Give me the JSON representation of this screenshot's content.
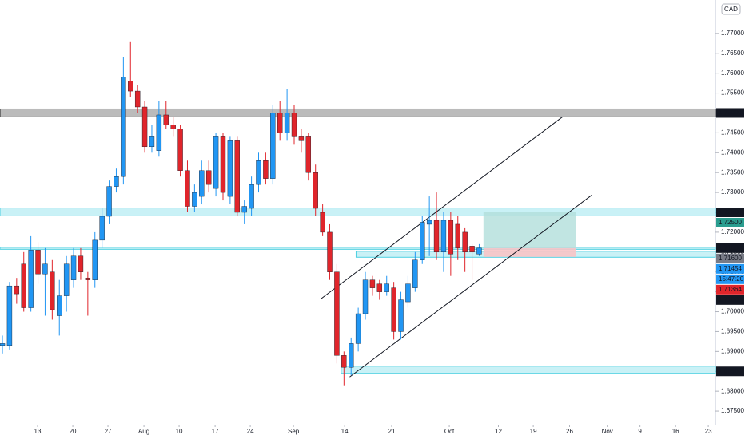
{
  "chart_data": {
    "type": "candlestick",
    "currency": "CAD",
    "xlim": [
      -0.34,
      100.2
    ],
    "ylim": [
      1.6716,
      1.7784
    ],
    "xticks": [
      {
        "value": 4.94,
        "label": "13"
      },
      {
        "value": 9.89,
        "label": "20"
      },
      {
        "value": 14.83,
        "label": "27"
      },
      {
        "value": 19.89,
        "label": "Aug"
      },
      {
        "value": 24.83,
        "label": "10"
      },
      {
        "value": 29.89,
        "label": "17"
      },
      {
        "value": 34.83,
        "label": "24"
      },
      {
        "value": 40.9,
        "label": "Sep"
      },
      {
        "value": 48.09,
        "label": "14"
      },
      {
        "value": 54.7,
        "label": "21"
      },
      {
        "value": 62.8,
        "label": "Oct"
      },
      {
        "value": 69.7,
        "label": "12"
      },
      {
        "value": 74.6,
        "label": "19"
      },
      {
        "value": 79.7,
        "label": "26"
      },
      {
        "value": 85.0,
        "label": "Nov"
      },
      {
        "value": 89.6,
        "label": "9"
      },
      {
        "value": 94.6,
        "label": "16"
      },
      {
        "value": 99.2,
        "label": "23"
      }
    ],
    "yticks": [
      {
        "value": 1.77,
        "label": "1.77000"
      },
      {
        "value": 1.765,
        "label": "1.76500"
      },
      {
        "value": 1.76,
        "label": "1.76000"
      },
      {
        "value": 1.755,
        "label": "1.75500"
      },
      {
        "value": 1.75,
        "label": "1.75000"
      },
      {
        "value": 1.745,
        "label": "1.74500"
      },
      {
        "value": 1.74,
        "label": "1.74000"
      },
      {
        "value": 1.735,
        "label": "1.73500"
      },
      {
        "value": 1.73,
        "label": "1.73000"
      },
      {
        "value": 1.725,
        "label": "1.72500"
      },
      {
        "value": 1.72,
        "label": "1.72000"
      },
      {
        "value": 1.715,
        "label": "1.71500"
      },
      {
        "value": 1.71,
        "label": "1.71000"
      },
      {
        "value": 1.705,
        "label": "1.70500"
      },
      {
        "value": 1.7,
        "label": "1.70000"
      },
      {
        "value": 1.695,
        "label": "1.69500"
      },
      {
        "value": 1.69,
        "label": "1.69000"
      },
      {
        "value": 1.685,
        "label": "1.68500"
      },
      {
        "value": 1.68,
        "label": "1.68000"
      },
      {
        "value": 1.675,
        "label": "1.67500"
      }
    ],
    "up_color": "#2196f3",
    "down_color": "#e0252b",
    "open": [
      1.6915,
      1.6915,
      1.7065,
      1.712,
      1.701,
      1.7155,
      1.7095,
      1.71,
      1.699,
      1.704,
      1.708,
      1.714,
      1.7085,
      1.708,
      1.718,
      1.724,
      1.7315,
      1.734,
      1.758,
      1.7555,
      1.7515,
      1.7415,
      1.7405,
      1.7495,
      1.747,
      1.746,
      1.7355,
      1.7265,
      1.729,
      1.7355,
      1.731,
      1.744,
      1.729,
      1.743,
      1.725,
      1.726,
      1.732,
      1.738,
      1.7335,
      1.75,
      1.745,
      1.75,
      1.744,
      1.744,
      1.735,
      1.725,
      1.72,
      1.71,
      1.689,
      1.686,
      1.692,
      1.6995,
      1.708,
      1.707,
      1.705,
      1.706,
      1.695,
      1.7025,
      1.706,
      1.713,
      1.722,
      1.723,
      1.715,
      1.723,
      1.722,
      1.72,
      1.7165,
      1.7145
    ],
    "high": [
      1.694,
      1.7075,
      1.7085,
      1.715,
      1.719,
      1.7175,
      1.716,
      1.713,
      1.708,
      1.714,
      1.716,
      1.716,
      1.71,
      1.72,
      1.726,
      1.733,
      1.736,
      1.764,
      1.768,
      1.757,
      1.753,
      1.747,
      1.753,
      1.753,
      1.749,
      1.747,
      1.738,
      1.732,
      1.738,
      1.738,
      1.745,
      1.745,
      1.744,
      1.744,
      1.728,
      1.734,
      1.74,
      1.74,
      1.752,
      1.753,
      1.756,
      1.752,
      1.746,
      1.745,
      1.737,
      1.727,
      1.722,
      1.712,
      1.69,
      1.6935,
      1.701,
      1.71,
      1.709,
      1.708,
      1.709,
      1.7075,
      1.705,
      1.709,
      1.715,
      1.724,
      1.729,
      1.73,
      1.725,
      1.725,
      1.724,
      1.721,
      1.717,
      1.717
    ],
    "low": [
      1.6895,
      1.6905,
      1.702,
      1.7,
      1.7,
      1.707,
      1.699,
      1.698,
      1.694,
      1.7,
      1.706,
      1.708,
      1.699,
      1.706,
      1.716,
      1.722,
      1.73,
      1.732,
      1.754,
      1.75,
      1.74,
      1.74,
      1.739,
      1.746,
      1.744,
      1.734,
      1.725,
      1.725,
      1.727,
      1.73,
      1.729,
      1.728,
      1.727,
      1.724,
      1.722,
      1.724,
      1.73,
      1.732,
      1.732,
      1.743,
      1.743,
      1.742,
      1.74,
      1.733,
      1.724,
      1.719,
      1.708,
      1.687,
      1.6815,
      1.684,
      1.69,
      1.698,
      1.704,
      1.703,
      1.704,
      1.693,
      1.693,
      1.701,
      1.705,
      1.712,
      1.714,
      1.713,
      1.71,
      1.709,
      1.713,
      1.71,
      1.708,
      1.714
    ],
    "close": [
      1.692,
      1.7065,
      1.7045,
      1.701,
      1.7155,
      1.7095,
      1.712,
      1.7005,
      1.704,
      1.712,
      1.714,
      1.71,
      1.708,
      1.718,
      1.724,
      1.7315,
      1.734,
      1.759,
      1.7555,
      1.7515,
      1.7415,
      1.744,
      1.7495,
      1.747,
      1.746,
      1.7355,
      1.7265,
      1.73,
      1.7355,
      1.732,
      1.744,
      1.73,
      1.743,
      1.725,
      1.7265,
      1.732,
      1.738,
      1.7335,
      1.75,
      1.745,
      1.75,
      1.744,
      1.743,
      1.735,
      1.726,
      1.72,
      1.71,
      1.689,
      1.686,
      1.692,
      1.6995,
      1.708,
      1.706,
      1.705,
      1.707,
      1.695,
      1.703,
      1.707,
      1.713,
      1.7225,
      1.723,
      1.715,
      1.723,
      1.7145,
      1.716,
      1.715,
      1.715,
      1.716
    ],
    "zones": [
      {
        "from": -0.34,
        "low": 1.749,
        "high": 1.751,
        "color": "#9e9e9e",
        "stroke": "#222222"
      },
      {
        "from": -0.34,
        "low": 1.7241,
        "high": 1.7261,
        "color": "#b2ebf2",
        "stroke": "#4dd0e1"
      },
      {
        "from": -0.34,
        "low": 1.7157,
        "high": 1.7162,
        "color": "#b2ebf2",
        "stroke": "#4dd0e1"
      },
      {
        "from": 49.7,
        "low": 1.7137,
        "high": 1.7152,
        "color": "#b2ebf2",
        "stroke": "#4dd0e1"
      },
      {
        "from": 47.6,
        "low": 1.6845,
        "high": 1.6863,
        "color": "#b2ebf2",
        "stroke": "#4dd0e1"
      }
    ],
    "trendlines": [
      {
        "x": [
          48.8,
          82.8
        ],
        "y": [
          1.6836,
          1.7293
        ]
      },
      {
        "x": [
          44.8,
          78.7
        ],
        "y": [
          1.7033,
          1.749
        ]
      }
    ],
    "position": {
      "x": [
        67.6,
        80.6
      ],
      "target": 1.725,
      "entry": 1.716,
      "stop": 1.7138
    },
    "price_labels": [
      {
        "value": 1.75,
        "label": "1.75000",
        "color": "#131722"
      },
      {
        "value": 1.725,
        "label": "1.72500",
        "color": "#131722"
      },
      {
        "value": 1.725,
        "label": "1.72500",
        "color": "#2a9d8f"
      },
      {
        "value": 1.716,
        "label": "1.71600",
        "color": "#131722"
      },
      {
        "value": 1.716,
        "label": "1.71600",
        "color": "#787b86"
      },
      {
        "value": 1.71454,
        "label": "1.71454",
        "color": "#2196f3"
      },
      {
        "value": 1.71364,
        "label": "1.71364",
        "color": "#e0252b"
      },
      {
        "value": 1.71,
        "label": "1.71000",
        "color": "#131722"
      },
      {
        "value": 1.685,
        "label": "1.68500",
        "color": "#131722"
      }
    ],
    "countdown": "15:47:20"
  }
}
